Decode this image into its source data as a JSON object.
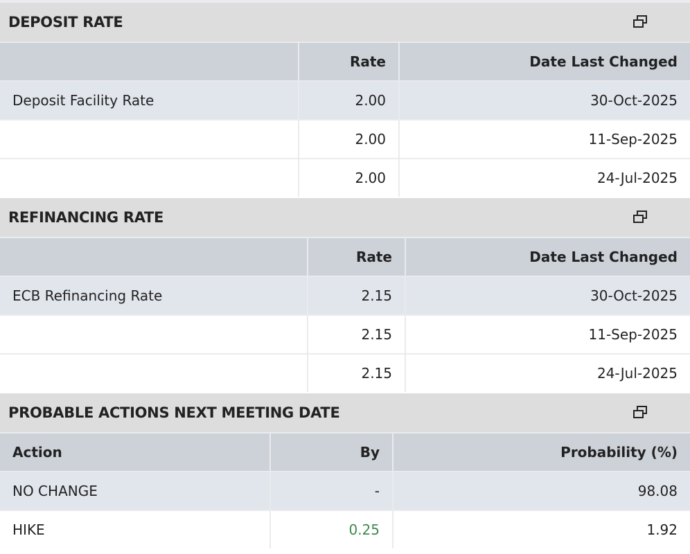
{
  "sections": [
    {
      "title": "DEPOSIT RATE",
      "columns": [
        null,
        "Rate",
        "Date Last Changed"
      ],
      "rows": [
        [
          "Deposit Facility Rate",
          "2.00",
          "30-Oct-2025"
        ],
        [
          null,
          "2.00",
          "11-Sep-2025"
        ],
        [
          null,
          "2.00",
          "24-Jul-2025"
        ]
      ]
    },
    {
      "title": "REFINANCING RATE",
      "columns": [
        null,
        "Rate",
        "Date Last Changed"
      ],
      "rows": [
        [
          "ECB Refinancing Rate",
          "2.15",
          "30-Oct-2025"
        ],
        [
          null,
          "2.15",
          "11-Sep-2025"
        ],
        [
          null,
          "2.15",
          "24-Jul-2025"
        ]
      ]
    },
    {
      "title": "PROBABLE ACTIONS NEXT MEETING DATE",
      "columns": [
        "Action",
        "By",
        "Probability (%)"
      ],
      "rows": [
        [
          "NO CHANGE",
          "-",
          "98.08"
        ],
        [
          "HIKE",
          {
            "text": "0.25",
            "color": "#3f8a4f"
          },
          "1.92"
        ]
      ]
    }
  ]
}
